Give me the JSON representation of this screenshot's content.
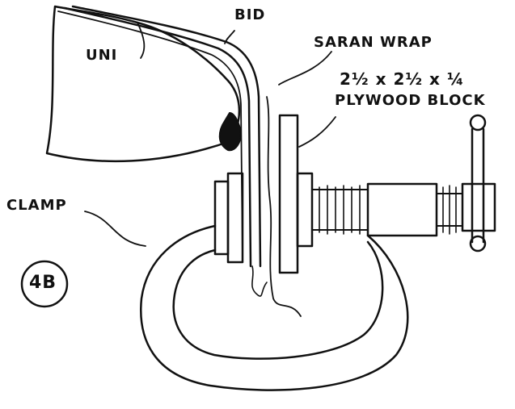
{
  "labels": {
    "uni": "UNI",
    "bid": "BID",
    "saran_wrap": "SARAN WRAP",
    "block_size": "2½ x 2½ x ¼",
    "block_name": "PLYWOOD BLOCK",
    "clamp": "CLAMP",
    "figure": "4B"
  },
  "colors": {
    "ink": "#111111",
    "paper": "#ffffff"
  }
}
